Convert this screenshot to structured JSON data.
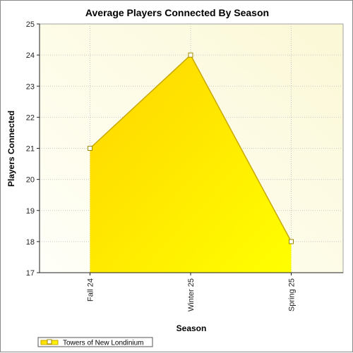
{
  "chart_data": {
    "type": "area",
    "title": "Average Players Connected By Season",
    "xlabel": "Season",
    "ylabel": "Players Connected",
    "categories": [
      "Fall 24",
      "Winter 25",
      "Spring 25"
    ],
    "series": [
      {
        "name": "Towers of New Londinium",
        "values": [
          21,
          24,
          18
        ]
      }
    ],
    "ylim": [
      17,
      25
    ],
    "yticks": [
      17,
      18,
      19,
      20,
      21,
      22,
      23,
      24,
      25
    ],
    "grid": true,
    "legend_position": "bottom-left",
    "colors": {
      "plot_bg_light": "#fffff8",
      "plot_bg_warm": "#fbf8d6",
      "fill_top": "#ffd400",
      "fill_bottom": "#ffff00",
      "line": "#c9a800",
      "marker_fill": "#ffffff"
    }
  }
}
